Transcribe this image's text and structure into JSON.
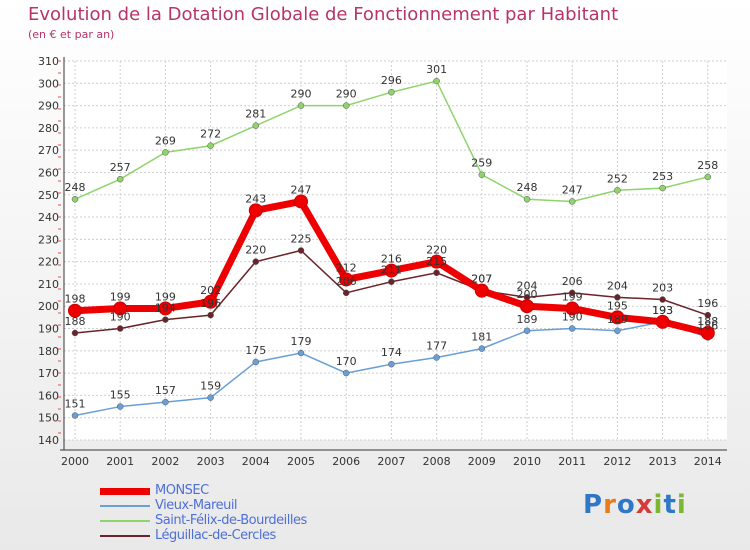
{
  "chart_data": {
    "type": "line",
    "title": "Evolution de la Dotation Globale de Fonctionnement par Habitant",
    "subtitle": "(en € et par an)",
    "xlabel": "",
    "ylabel": "",
    "ylim": [
      140,
      310
    ],
    "yticks": [
      140,
      150,
      160,
      170,
      180,
      190,
      200,
      210,
      220,
      230,
      240,
      250,
      260,
      270,
      280,
      290,
      300,
      310
    ],
    "categories": [
      "2000",
      "2001",
      "2002",
      "2003",
      "2004",
      "2005",
      "2006",
      "2007",
      "2008",
      "2009",
      "2010",
      "2011",
      "2012",
      "2013",
      "2014"
    ],
    "grid": true,
    "legend_position": "bottom-left",
    "series": [
      {
        "name": "Saint-Félix-de-Bourdeilles",
        "color": "#8fd46b",
        "values": [
          248,
          257,
          269,
          272,
          281,
          290,
          290,
          296,
          301,
          259,
          248,
          247,
          252,
          253,
          258
        ]
      },
      {
        "name": "Vieux-Mareuil",
        "color": "#6a9fd6",
        "values": [
          151,
          155,
          157,
          159,
          175,
          179,
          170,
          174,
          177,
          181,
          189,
          190,
          189,
          193,
          186
        ]
      },
      {
        "name": "Léguillac-de-Cercles",
        "color": "#6b2329",
        "values": [
          188,
          190,
          194,
          196,
          220,
          225,
          206,
          211,
          215,
          207,
          204,
          206,
          204,
          203,
          196
        ]
      },
      {
        "name": "MONSEC",
        "color": "#ee0000",
        "values": [
          198,
          199,
          199,
          202,
          243,
          247,
          212,
          216,
          220,
          207,
          200,
          199,
          195,
          193,
          188
        ]
      }
    ],
    "legend_order": [
      "MONSEC",
      "Vieux-Mareuil",
      "Saint-Félix-de-Bourdeilles",
      "Léguillac-de-Cercles"
    ]
  },
  "logo": {
    "text": "Proxiti"
  }
}
